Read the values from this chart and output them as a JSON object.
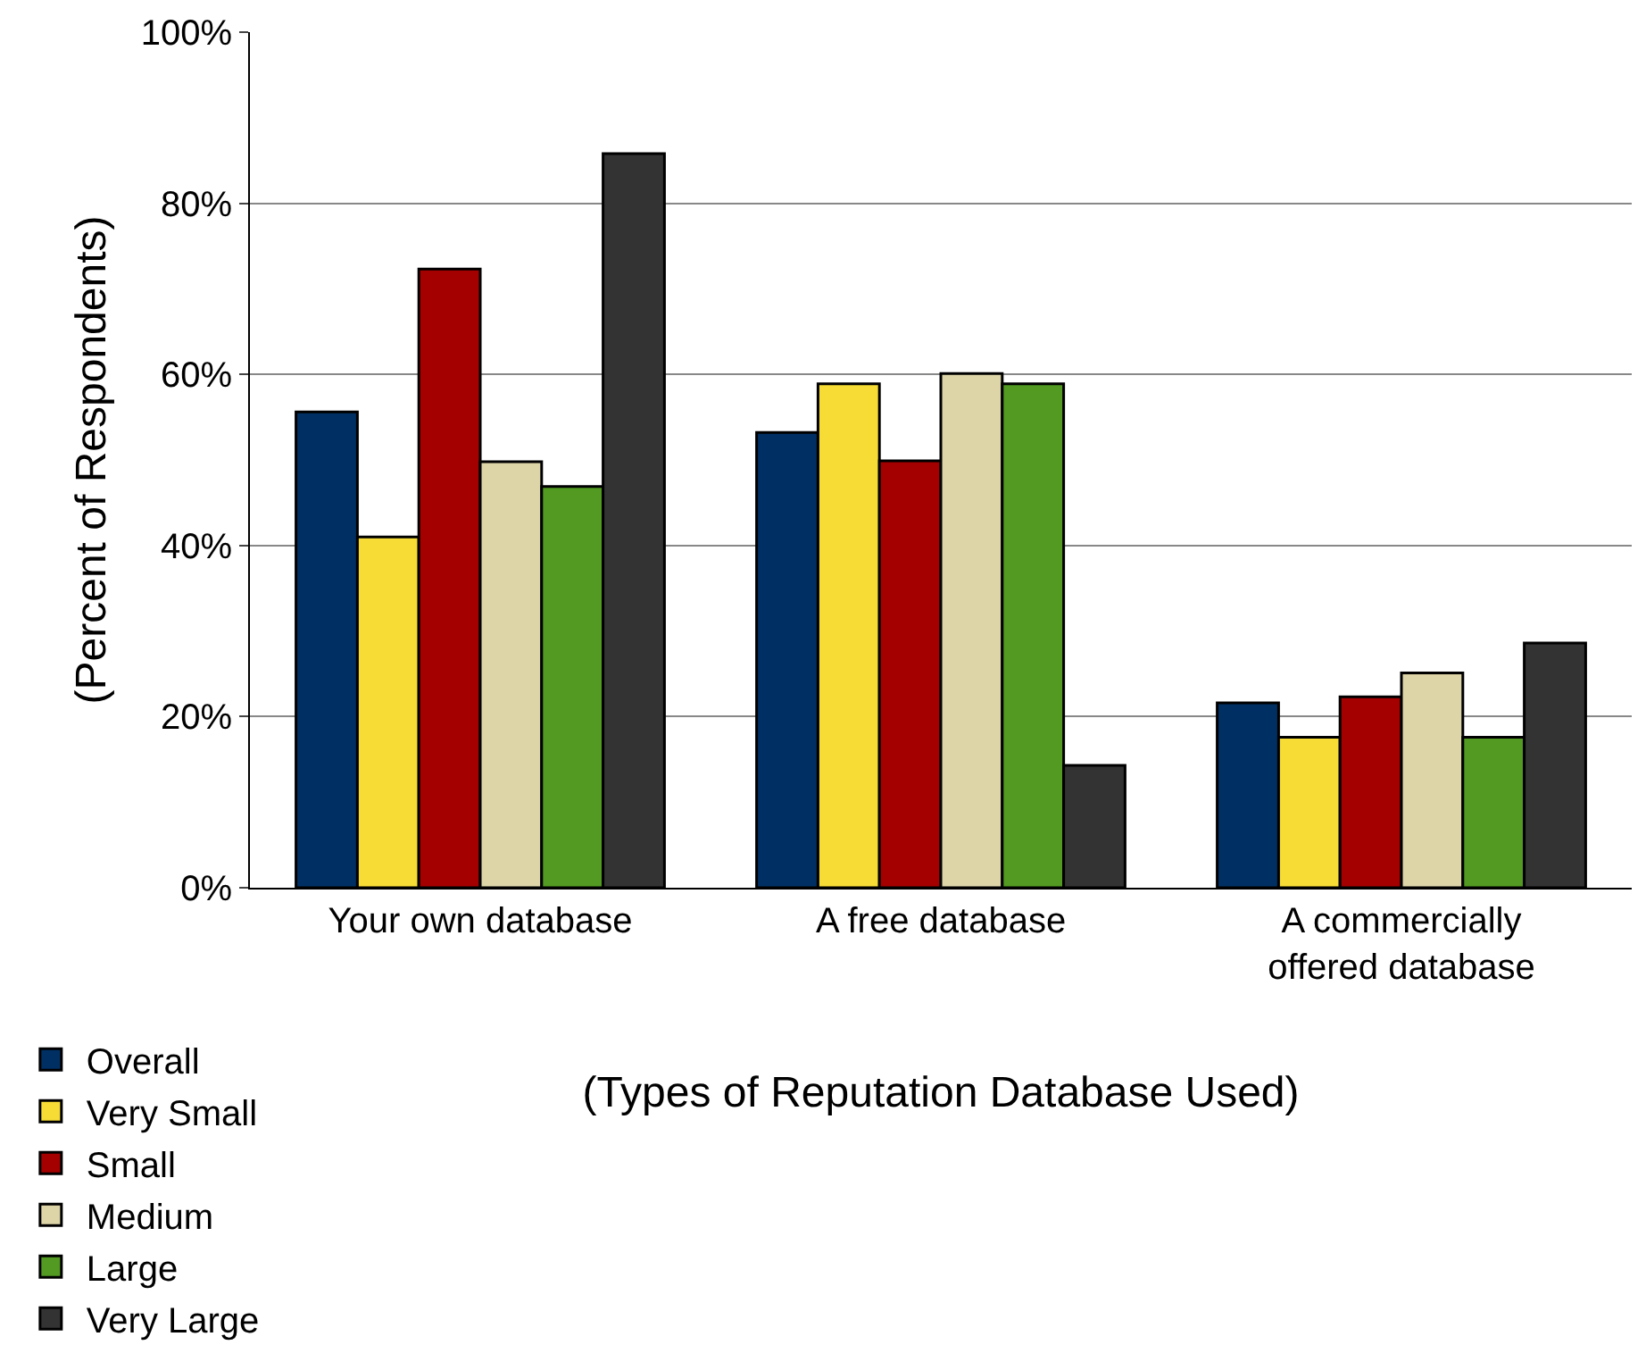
{
  "chart_data": {
    "type": "bar",
    "xlabel": "(Types of Reputation Database Used)",
    "ylabel": "(Percent of Respondents)",
    "categories": [
      "Your own database",
      "A free database",
      "A commercially\noffered database"
    ],
    "series": [
      {
        "name": "Overall",
        "color": "#003063",
        "values": [
          55.6,
          53.2,
          21.6
        ]
      },
      {
        "name": "Very Small",
        "color": "#f7dc35",
        "values": [
          41.0,
          58.9,
          17.6
        ]
      },
      {
        "name": "Small",
        "color": "#a50000",
        "values": [
          72.3,
          49.9,
          22.3
        ]
      },
      {
        "name": "Medium",
        "color": "#ddd5a8",
        "values": [
          49.8,
          60.1,
          25.1
        ]
      },
      {
        "name": "Large",
        "color": "#529a22",
        "values": [
          46.9,
          58.9,
          17.6
        ]
      },
      {
        "name": "Very Large",
        "color": "#333333",
        "values": [
          85.8,
          14.3,
          28.6
        ]
      }
    ],
    "ylim": [
      0,
      100
    ],
    "yticks": [
      {
        "value": 0,
        "label": "0%"
      },
      {
        "value": 20,
        "label": "20%"
      },
      {
        "value": 40,
        "label": "40%"
      },
      {
        "value": 60,
        "label": "60%"
      },
      {
        "value": 80,
        "label": "80%"
      },
      {
        "value": 100,
        "label": "100%"
      }
    ],
    "grid": "y",
    "legend": "bottom left"
  }
}
